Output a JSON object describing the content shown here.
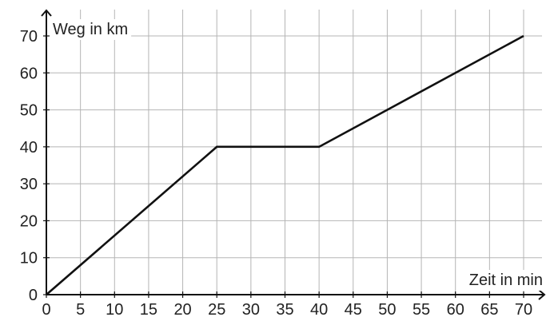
{
  "chart_data": {
    "type": "line",
    "xlabel": "Zeit in min",
    "ylabel": "Weg in km",
    "xlim": [
      0,
      70
    ],
    "ylim": [
      0,
      70
    ],
    "x_ticks": [
      0,
      5,
      10,
      15,
      20,
      25,
      30,
      35,
      40,
      45,
      50,
      55,
      60,
      65,
      70
    ],
    "y_ticks": [
      0,
      10,
      20,
      30,
      40,
      50,
      60,
      70
    ],
    "x_tick_labels": [
      "0",
      "5",
      "10",
      "15",
      "20",
      "25",
      "30",
      "35",
      "40",
      "45",
      "50",
      "55",
      "60",
      "65",
      "70"
    ],
    "y_tick_labels": [
      "0",
      "10",
      "20",
      "30",
      "40",
      "50",
      "60",
      "70"
    ],
    "grid": true,
    "series": [
      {
        "points": [
          {
            "x": 0,
            "y": 0
          },
          {
            "x": 25,
            "y": 40
          },
          {
            "x": 40,
            "y": 40
          },
          {
            "x": 70,
            "y": 70
          }
        ]
      }
    ],
    "line_color": "#111111",
    "grid_color": "#b5b5b5"
  }
}
